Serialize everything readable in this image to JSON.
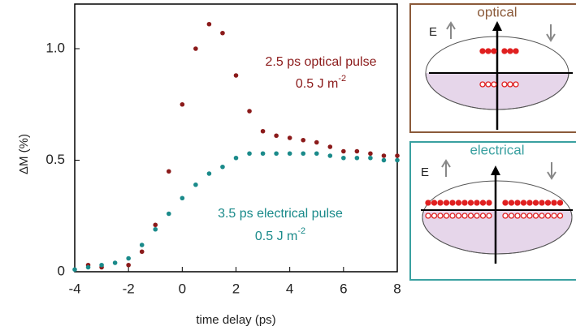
{
  "chart_data": {
    "type": "scatter",
    "xlabel": "time delay (ps)",
    "ylabel": "ΔM (%)",
    "xlim": [
      -4,
      8
    ],
    "xticks": [
      -4,
      -2,
      0,
      2,
      4,
      6,
      8
    ],
    "ylim": [
      0,
      1.2
    ],
    "yticks": [
      0,
      0.5,
      {
        "value": 1,
        "label": "1.0"
      }
    ],
    "series": [
      {
        "name": "2.5 ps optical pulse",
        "color": "#8b1a1a",
        "x": [
          -3.5,
          -3.0,
          -2.0,
          -1.5,
          -1.0,
          -0.5,
          0,
          0.5,
          1,
          1.5,
          2,
          2.5,
          3,
          3.5,
          4,
          4.5,
          5,
          5.5,
          6,
          6.5,
          7,
          7.5,
          8
        ],
        "values": [
          0.03,
          0.02,
          0.03,
          0.09,
          0.21,
          0.45,
          0.75,
          1.0,
          1.11,
          1.07,
          0.88,
          0.72,
          0.63,
          0.61,
          0.6,
          0.59,
          0.58,
          0.56,
          0.54,
          0.54,
          0.53,
          0.52,
          0.52
        ]
      },
      {
        "name": "3.5 ps electrical pulse",
        "color": "#1a8a8a",
        "x": [
          -4,
          -3.5,
          -3,
          -2.5,
          -2,
          -1.5,
          -1,
          -0.5,
          0,
          0.5,
          1,
          1.5,
          2,
          2.5,
          3,
          3.5,
          4,
          4.5,
          5,
          5.5,
          6,
          6.5,
          7,
          7.5,
          8
        ],
        "values": [
          0.01,
          0.02,
          0.03,
          0.04,
          0.06,
          0.12,
          0.19,
          0.26,
          0.33,
          0.39,
          0.44,
          0.47,
          0.51,
          0.53,
          0.53,
          0.53,
          0.53,
          0.53,
          0.53,
          0.52,
          0.51,
          0.51,
          0.51,
          0.5,
          0.5
        ]
      }
    ],
    "annotations": [
      {
        "text": "0.5 J m",
        "sup": "-2"
      },
      {
        "text": "0.5 J m",
        "sup": "-2"
      }
    ]
  },
  "insets": [
    {
      "title": "optical",
      "field_label": "E"
    },
    {
      "title": "electrical",
      "field_label": "E"
    }
  ]
}
